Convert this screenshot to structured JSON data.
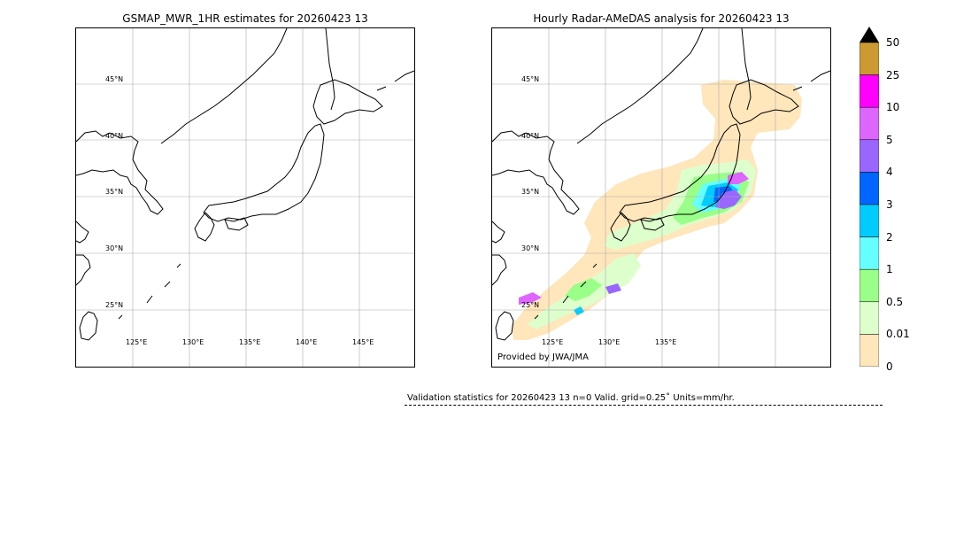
{
  "left_panel": {
    "title": "GSMAP_MWR_1HR estimates for 20260423 13",
    "lat_labels": [
      "45°N",
      "40°N",
      "35°N",
      "30°N",
      "25°N"
    ],
    "lon_labels": [
      "125°E",
      "130°E",
      "135°E",
      "140°E",
      "145°E"
    ]
  },
  "right_panel": {
    "title": "Hourly Radar-AMeDAS analysis for 20260423 13",
    "lat_labels": [
      "45°N",
      "40°N",
      "35°N",
      "30°N",
      "25°N"
    ],
    "lon_labels": [
      "125°E",
      "130°E",
      "135°E"
    ],
    "credit": "Provided by JWA/JMA"
  },
  "colorbar": {
    "ticks": [
      "50",
      "25",
      "10",
      "5",
      "4",
      "3",
      "2",
      "1",
      "0.5",
      "0.01",
      "0"
    ],
    "colors": [
      "#cc9933",
      "#ff00ff",
      "#dd66ff",
      "#9966ff",
      "#0066ff",
      "#00ccff",
      "#66ffff",
      "#99ff88",
      "#ddffcc",
      "#ffe6bb"
    ],
    "extend_color": "#000000"
  },
  "validation": {
    "text": "Validation statistics for 20260423 13  n=0 Valid. grid=0.25˚ Units=mm/hr."
  }
}
